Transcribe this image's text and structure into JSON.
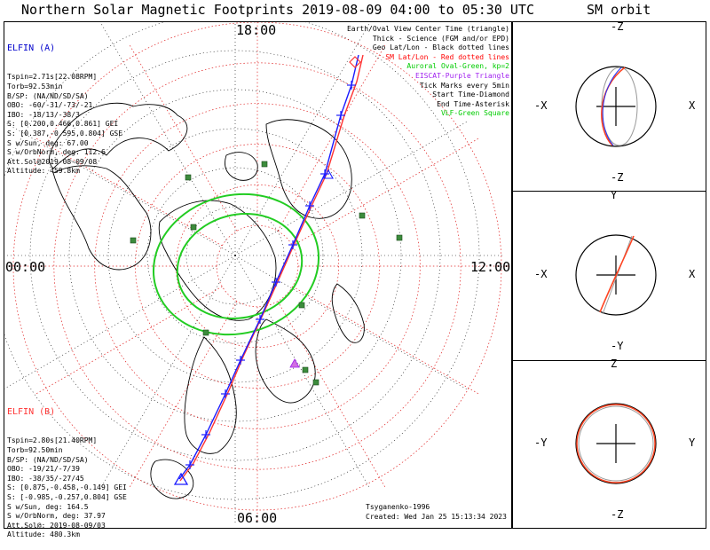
{
  "title": "Northern Solar Magnetic Footprints 2019-08-09 04:00 to 05:30 UTC",
  "orbit_title": "SM orbit",
  "map": {
    "mlt_labels": {
      "top": "18:00",
      "bottom": "06:00",
      "left": "00:00",
      "right": "12:00"
    },
    "model": "Tsyganenko-1996",
    "created": "Created: Wed Jan 25 15:13:34 2023"
  },
  "legend": [
    {
      "text": "Earth/Oval View Center Time (triangle)",
      "color": "#000000"
    },
    {
      "text": "Thick - Science (FGM and/or EPD)",
      "color": "#000000"
    },
    {
      "text": "Geo Lat/Lon - Black dotted lines",
      "color": "#000000"
    },
    {
      "text": "SM Lat/Lon - Red dotted lines",
      "color": "#ff0000"
    },
    {
      "text": "Auroral Oval-Green, kp=2",
      "color": "#00cc00"
    },
    {
      "text": "EISCAT-Purple Triangle",
      "color": "#a020f0"
    },
    {
      "text": "Tick Marks every 5min",
      "color": "#000000"
    },
    {
      "text": "Start Time-Diamond",
      "color": "#000000"
    },
    {
      "text": "End Time-Asterisk",
      "color": "#000000"
    },
    {
      "text": "VLF-Green Square",
      "color": "#00cc00"
    }
  ],
  "elfin_a": {
    "header": "ELFIN (A)",
    "color": "#0000cc",
    "lines": [
      "Tspin=2.71s[22.08RPM]",
      "Torb=92.53min",
      "B/SP: (NA/ND/SD/SA)",
      "OBO: -60/-31/-73/-21",
      "IBO: -18/13/-38/3",
      "S: [0.200,0.466,0.861] GEI",
      "S: [0.387,-0.595,0.804] GSE",
      "S w/Sun, deg: 67.00",
      "S w/OrbNorm, deg: 112.6",
      "Att.Sol@2019-08-09/08",
      "Altitude: 459.8km"
    ]
  },
  "elfin_b": {
    "header": "ELFIN (B)",
    "color": "#ff3333",
    "lines": [
      "Tspin=2.80s[21.40RPM]",
      "Torb=92.50min",
      "B/SP: (NA/ND/SD/SA)",
      "OBO: -19/21/-7/39",
      "IBO: -38/35/-27/45",
      "S: [0.875,-0.458,-0.149] GEI",
      "S: [-0.985,-0.257,0.804] GSE",
      "S w/Sun, deg: 164.5",
      "S w/OrbNorm, deg: 37.97",
      "Att.Sol@: 2019-08-09/03",
      "Altitude: 480.3km"
    ]
  },
  "orbit_panels": [
    {
      "top": "-Z",
      "bottom": "-Z",
      "left": "-X",
      "right": "X"
    },
    {
      "top": "Y",
      "bottom": "-Y",
      "left": "-X",
      "right": "X"
    },
    {
      "top": "Z",
      "bottom": "-Z",
      "left": "-Y",
      "right": "Y"
    }
  ],
  "chart_data": {
    "type": "scatter",
    "projection": "north polar, solar magnetic coordinates",
    "sm_lat_circles_deg": [
      80,
      70,
      60,
      50,
      40,
      30
    ],
    "mlt_spokes_every_hours": 2,
    "auroral_oval_kp": 2,
    "tick_interval_min": 5,
    "time_range": [
      "2019-08-09 04:00",
      "2019-08-09 05:30"
    ],
    "vlf_station_count": 10
  }
}
